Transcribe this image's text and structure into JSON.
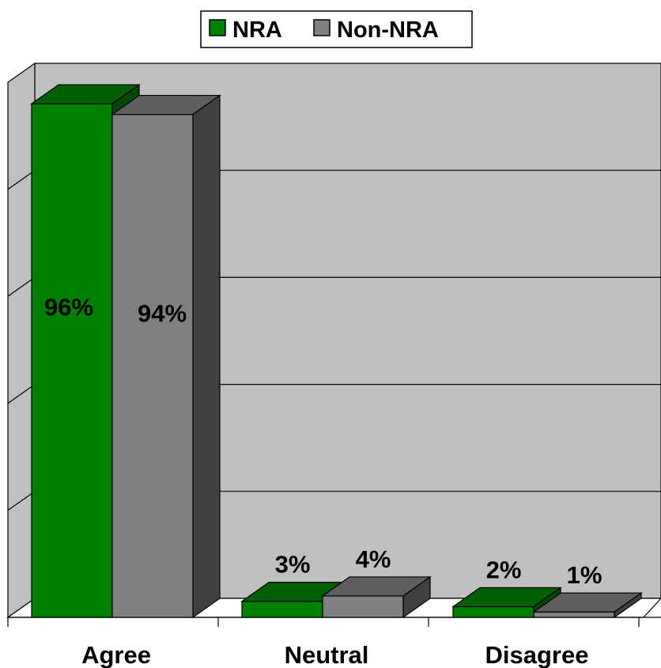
{
  "chart_data": {
    "type": "bar",
    "categories": [
      "Agree",
      "Neutral",
      "Disagree"
    ],
    "series": [
      {
        "name": "NRA",
        "values": [
          96,
          3,
          2
        ],
        "labels": [
          "96%",
          "3%",
          "2%"
        ],
        "front": "#008000",
        "top": "#005f00",
        "side": "#004800"
      },
      {
        "name": "Non-NRA",
        "values": [
          94,
          4,
          1
        ],
        "labels": [
          "94%",
          "4%",
          "1%"
        ],
        "front": "#808080",
        "top": "#5e5e5e",
        "side": "#404040"
      }
    ],
    "ylim": [
      0,
      100
    ],
    "grid": true,
    "legend_position": "top-center",
    "colors": {
      "wall": "#c0c0c0",
      "floor": "#ffffff",
      "outline": "#000000"
    }
  }
}
